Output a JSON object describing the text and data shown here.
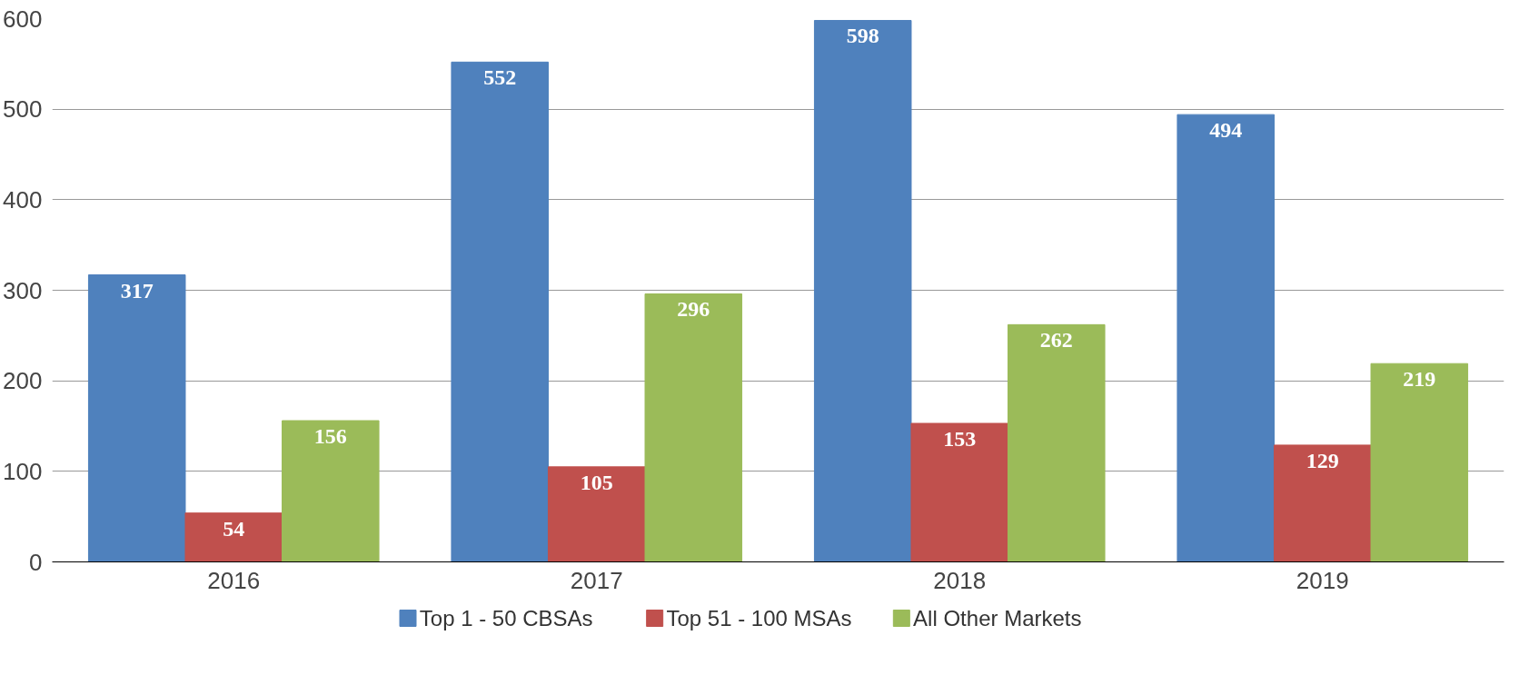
{
  "chart_data": {
    "type": "bar",
    "categories": [
      "2016",
      "2017",
      "2018",
      "2019"
    ],
    "series": [
      {
        "name": "Top 1 - 50 CBSAs",
        "color": "#4f81bd",
        "values": [
          317,
          552,
          598,
          494
        ]
      },
      {
        "name": "Top 51 - 100 MSAs",
        "color": "#c0504d",
        "values": [
          54,
          105,
          153,
          129
        ]
      },
      {
        "name": "All Other Markets",
        "color": "#9bbb59",
        "values": [
          156,
          296,
          262,
          219
        ]
      }
    ],
    "ylim": [
      0,
      600
    ],
    "yticks": [
      0,
      100,
      200,
      300,
      400,
      500,
      600
    ],
    "grid": "y",
    "legend": "bottom",
    "data_labels": true
  }
}
